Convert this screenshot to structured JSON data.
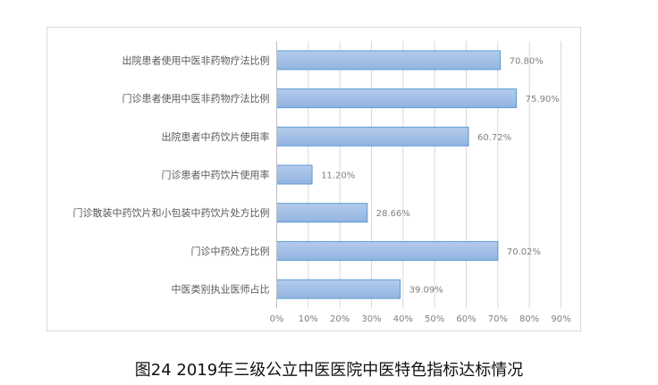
{
  "chart_data": {
    "type": "bar",
    "orientation": "horizontal",
    "categories": [
      "出院患者使用中医非药物疗法比例",
      "门诊患者使用中医非药物疗法比例",
      "出院患者中药饮片使用率",
      "门诊患者中药饮片使用率",
      "门诊散装中药饮片和小包装中药饮片处方比例",
      "门诊中药处方比例",
      "中医类别执业医师占比"
    ],
    "values": [
      70.8,
      75.9,
      60.72,
      11.2,
      28.66,
      70.02,
      39.09
    ],
    "data_labels": [
      "70.80%",
      "75.90%",
      "60.72%",
      "11.20%",
      "28.66%",
      "70.02%",
      "39.09%"
    ],
    "xticks": [
      "0%",
      "10%",
      "20%",
      "30%",
      "40%",
      "50%",
      "60%",
      "70%",
      "80%",
      "90%"
    ],
    "xlim": [
      0,
      90
    ],
    "grid": true,
    "bar_color": "#9dbde6",
    "bar_border": "#5b9bd5",
    "title": "图24 2019年三级公立中医医院中医特色指标达标情况"
  }
}
